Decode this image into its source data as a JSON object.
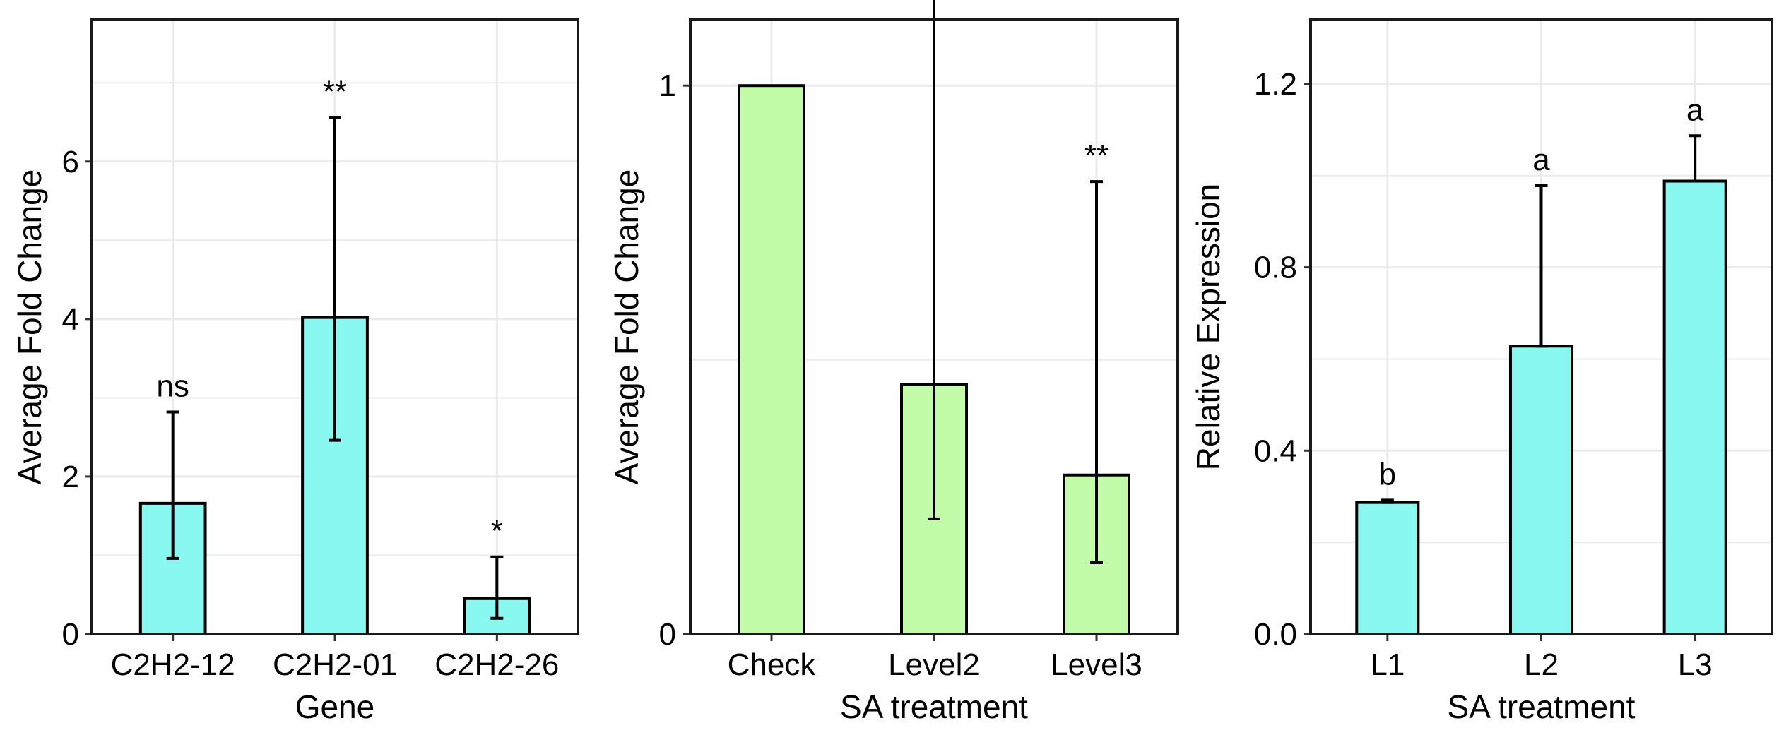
{
  "chart_data": [
    {
      "type": "bar",
      "xlabel": "Gene",
      "ylabel": "Average Fold Change",
      "ylim": [
        0,
        7.8
      ],
      "yticks": [
        0,
        2,
        4,
        6
      ],
      "ytick_labels": [
        "0",
        "2",
        "4",
        "6"
      ],
      "minor_grid": [
        1,
        3,
        5,
        7
      ],
      "categories": [
        "C2H2-12",
        "C2H2-01",
        "C2H2-26"
      ],
      "values": [
        1.66,
        4.02,
        0.45
      ],
      "err_low": [
        0.96,
        2.46,
        0.2
      ],
      "err_high": [
        2.82,
        6.56,
        0.98
      ],
      "annotations": [
        "ns",
        "**",
        "*"
      ],
      "bar_color": "#88f8f0",
      "grid": true
    },
    {
      "type": "bar",
      "xlabel": "SA treatment",
      "ylabel": "Average Fold Change",
      "ylim": [
        0,
        1.12
      ],
      "yticks": [
        0,
        1
      ],
      "ytick_labels": [
        "0",
        "1"
      ],
      "minor_grid": [
        0.5
      ],
      "categories": [
        "Check",
        "Level2",
        "Level3"
      ],
      "values": [
        1.0,
        0.455,
        0.29
      ],
      "err_low": [
        1.0,
        0.21,
        0.13
      ],
      "err_high": [
        1.0,
        1.305,
        0.825
      ],
      "annotations": [
        "",
        "*",
        "**"
      ],
      "bar_color": "#c2fca8",
      "grid": true
    },
    {
      "type": "bar",
      "xlabel": "SA treatment",
      "ylabel": "Relative Expression",
      "ylim": [
        0,
        1.34
      ],
      "yticks": [
        0,
        0.4,
        0.8,
        1.2
      ],
      "ytick_labels": [
        "0.0",
        "0.4",
        "0.8",
        "1.2"
      ],
      "minor_grid": [
        0.2,
        0.6,
        1.0
      ],
      "categories": [
        "L1",
        "L2",
        "L3"
      ],
      "values": [
        0.287,
        0.628,
        0.988
      ],
      "err_low": [
        0.287,
        0.628,
        0.988
      ],
      "err_high": [
        0.292,
        0.978,
        1.087
      ],
      "annotations": [
        "b",
        "a",
        "a"
      ],
      "bar_color": "#88f8f0",
      "grid": true
    }
  ]
}
